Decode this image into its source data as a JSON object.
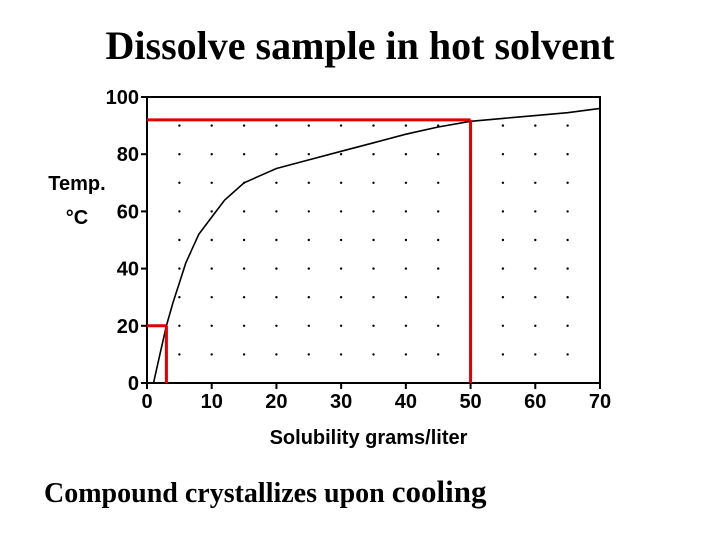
{
  "slide": {
    "title": "Dissolve sample in hot solvent",
    "caption_main": "Compound crystallizes upon ",
    "caption_emph": "cooling"
  },
  "chart_data": {
    "type": "line",
    "xlabel": "Solubility grams/liter",
    "ylabel_line1": "Temp.",
    "ylabel_line2": "°C",
    "xlim": [
      0,
      70
    ],
    "ylim": [
      0,
      100
    ],
    "x_ticks": [
      0,
      10,
      20,
      30,
      40,
      50,
      60,
      70
    ],
    "y_ticks": [
      0,
      20,
      40,
      60,
      80,
      100
    ],
    "grid": "dotted",
    "series": [
      {
        "color": "#000000",
        "points": [
          [
            1,
            0
          ],
          [
            2,
            10
          ],
          [
            3,
            20
          ],
          [
            4,
            28
          ],
          [
            5,
            35
          ],
          [
            6,
            42
          ],
          [
            7,
            47
          ],
          [
            8,
            52
          ],
          [
            10,
            58
          ],
          [
            12,
            64
          ],
          [
            15,
            70
          ],
          [
            18,
            73
          ],
          [
            20,
            75
          ],
          [
            25,
            78
          ],
          [
            30,
            81
          ],
          [
            35,
            84
          ],
          [
            40,
            87
          ],
          [
            45,
            89.5
          ],
          [
            50,
            91.5
          ],
          [
            55,
            92.5
          ],
          [
            60,
            93.5
          ],
          [
            65,
            94.5
          ],
          [
            70,
            96
          ]
        ]
      }
    ],
    "markers": {
      "color": "#e00000",
      "hot": {
        "x": 50,
        "y": 92
      },
      "cold": {
        "x": 3,
        "y": 20
      }
    }
  }
}
